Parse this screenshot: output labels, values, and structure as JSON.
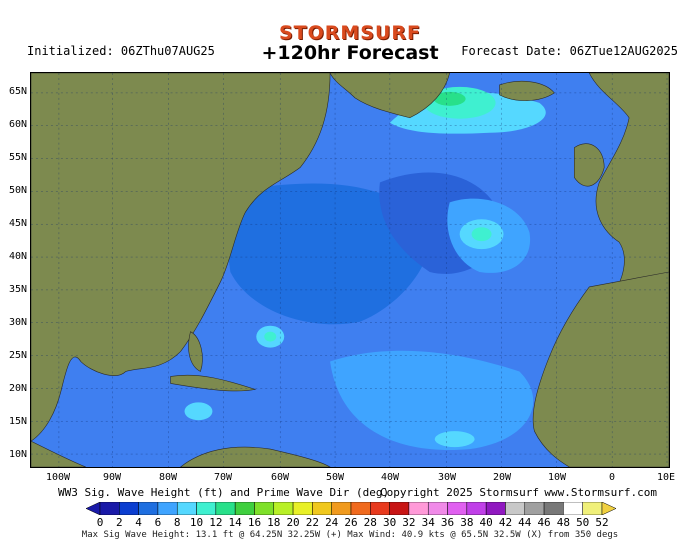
{
  "header": {
    "logo": "STORMSURF",
    "title": "+120hr Forecast",
    "initialized": "Initialized: 06ZThu07AUG25",
    "forecast_date": "Forecast Date: 06ZTue12AUG2025"
  },
  "axes": {
    "lat_labels": [
      "65N",
      "60N",
      "55N",
      "50N",
      "45N",
      "40N",
      "35N",
      "30N",
      "25N",
      "20N",
      "15N",
      "10N"
    ],
    "lon_labels": [
      "100W",
      "90W",
      "80W",
      "70W",
      "60W",
      "50W",
      "40W",
      "30W",
      "20W",
      "10W",
      "0",
      "10E"
    ]
  },
  "footer": {
    "left": "WW3 Sig. Wave Height (ft) and Prime Wave Dir (deg)",
    "center": "Copyright 2025 Stormsurf",
    "right": "www.Stormsurf.com",
    "max_line": "Max Sig Wave Height: 13.1 ft @ 64.25N 32.25W (+)   Max Wind: 40.9 kts @ 65.5N 32.5W (X) from 350 degs"
  },
  "colorbar": {
    "labels": [
      "0",
      "2",
      "4",
      "6",
      "8",
      "10",
      "12",
      "14",
      "16",
      "18",
      "20",
      "22",
      "24",
      "26",
      "28",
      "30",
      "32",
      "34",
      "36",
      "38",
      "40",
      "42",
      "44",
      "46",
      "48",
      "50",
      "52"
    ],
    "colors": [
      "#1a1aa8",
      "#0b3ed0",
      "#1f6fe0",
      "#3fa4ff",
      "#55d8ff",
      "#3ff0d0",
      "#28e08a",
      "#3fcf3f",
      "#7ee02a",
      "#b8f028",
      "#e8f028",
      "#f0c81e",
      "#f09a1e",
      "#f06a1e",
      "#e83a1e",
      "#c81414",
      "#ff9ad8",
      "#f08ae8",
      "#e060f0",
      "#c040e8",
      "#9018c0",
      "#c8c8c8",
      "#a0a0a0",
      "#787878",
      "#ffffff",
      "#f0f07a"
    ]
  },
  "colors": {
    "land": "#7d8a4f",
    "deep_blue": "#1a1aa8",
    "mid_blue": "#1f6fe0",
    "ocean": "#3f7ff0",
    "light": "#55c8ff"
  }
}
